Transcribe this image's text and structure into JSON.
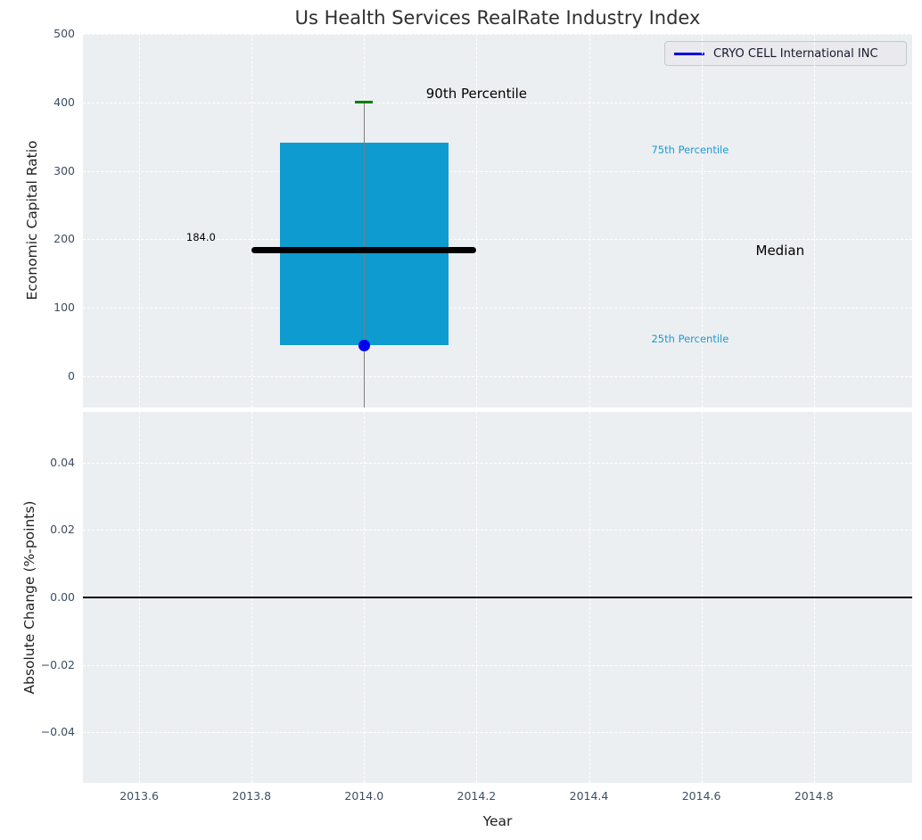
{
  "title": "Us Health Services RealRate Industry Index",
  "legend": {
    "label": "CRYO CELL International INC",
    "line_color": "#0000e0"
  },
  "colors": {
    "axes_bg": "#eceff1",
    "grid": "#ffffff",
    "tick_label": "#3d4e63",
    "box_fill": "#0d9bd0",
    "median_line": "#000000",
    "whisker": "#7f7f7f",
    "cap_90th": "#007f00",
    "company_dot": "#0000ee",
    "annotation_accent": "#1f9ad2",
    "annotation_dark": "#000000",
    "zero_line": "#000000"
  },
  "chart_data": [
    {
      "type": "boxplot",
      "title": "Us Health Services RealRate Industry Index",
      "ylabel": "Economic Capital Ratio",
      "xlim": [
        2013.5,
        2014.975
      ],
      "ylim": [
        -46,
        500
      ],
      "grid": true,
      "legend_location": "upper right",
      "yticks": [
        {
          "v": 0,
          "label": "0"
        },
        {
          "v": 100,
          "label": "100"
        },
        {
          "v": 200,
          "label": "200"
        },
        {
          "v": 300,
          "label": "300"
        },
        {
          "v": 400,
          "label": "400"
        },
        {
          "v": 500,
          "label": "500"
        }
      ],
      "xticks": [
        {
          "v": 2013.6
        },
        {
          "v": 2013.8
        },
        {
          "v": 2014.0
        },
        {
          "v": 2014.2
        },
        {
          "v": 2014.4
        },
        {
          "v": 2014.6
        },
        {
          "v": 2014.8
        }
      ],
      "box": {
        "x_center": 2014.0,
        "box_left": 2013.85,
        "box_right": 2014.15,
        "q1_25th": 45,
        "median": 184,
        "q3_75th": 341,
        "p90": 401,
        "median_label": "184.0",
        "median_line_left": 2013.8,
        "median_line_right": 2014.2,
        "cap_halfwidth": 0.016,
        "whisker_bottom_clip": -46
      },
      "company_point": {
        "name": "CRYO CELL International INC",
        "x": 2014.0,
        "y": 45
      },
      "annotations": [
        {
          "id": "p90-label",
          "text": "90th Percentile",
          "x": 2014.2,
          "y": 413,
          "style": "dark",
          "size": 15
        },
        {
          "id": "p75-label",
          "text": "75th Percentile",
          "x": 2014.58,
          "y": 331,
          "style": "accent",
          "size": 11.5
        },
        {
          "id": "median-label",
          "text": "Median",
          "x": 2014.74,
          "y": 184,
          "style": "dark",
          "size": 15
        },
        {
          "id": "p25-label",
          "text": "25th Percentile",
          "x": 2014.58,
          "y": 55,
          "style": "accent",
          "size": 11.5
        },
        {
          "id": "median-value",
          "text": "184.0",
          "x": 2013.71,
          "y": 203,
          "style": "dark",
          "size": 11.5
        }
      ]
    },
    {
      "type": "line",
      "ylabel": "Absolute Change (%-points)",
      "xlabel": "Year",
      "xlim": [
        2013.5,
        2014.975
      ],
      "ylim": [
        -0.055,
        0.055
      ],
      "grid": true,
      "zero_line": 0.0,
      "series": [],
      "yticks": [
        {
          "v": 0.04,
          "label": "0.04"
        },
        {
          "v": 0.02,
          "label": "0.02"
        },
        {
          "v": 0.0,
          "label": "0.00"
        },
        {
          "v": -0.02,
          "label": "−0.02"
        },
        {
          "v": -0.04,
          "label": "−0.04"
        }
      ],
      "xticks": [
        {
          "v": 2013.6,
          "label": "2013.6"
        },
        {
          "v": 2013.8,
          "label": "2013.8"
        },
        {
          "v": 2014.0,
          "label": "2014.0"
        },
        {
          "v": 2014.2,
          "label": "2014.2"
        },
        {
          "v": 2014.4,
          "label": "2014.4"
        },
        {
          "v": 2014.6,
          "label": "2014.6"
        },
        {
          "v": 2014.8,
          "label": "2014.8"
        }
      ]
    }
  ]
}
